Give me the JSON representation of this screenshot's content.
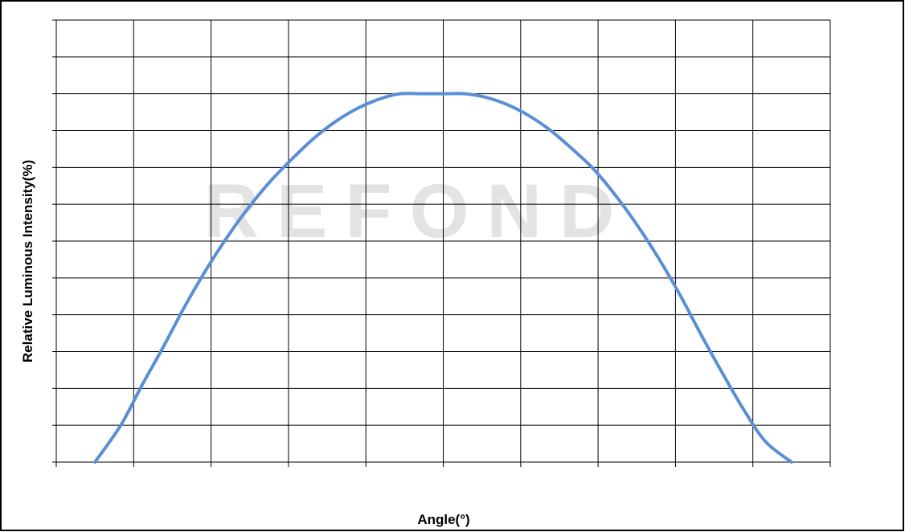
{
  "chart_data": {
    "type": "line",
    "title": "",
    "xlabel": "Angle(°)",
    "ylabel": "Relative Luminous Intensity(%)",
    "xlim": [
      -90,
      90
    ],
    "ylim": [
      0,
      100
    ],
    "grid": true,
    "x_divisions": 10,
    "y_divisions": 12,
    "series": [
      {
        "x": [
          -81,
          -75,
          -70,
          -65,
          -60,
          -55,
          -50,
          -45,
          -40,
          -35,
          -30,
          -25,
          -20,
          -15,
          -10,
          -5,
          0,
          5,
          10,
          15,
          20,
          25,
          30,
          35,
          40,
          45,
          50,
          55,
          60,
          65,
          70,
          75,
          81
        ],
        "y": [
          0,
          10,
          21,
          31.5,
          42.5,
          52.5,
          61.5,
          69.5,
          76.5,
          82.5,
          88,
          92.5,
          96,
          98.5,
          100,
          100,
          100,
          100,
          99,
          97,
          94,
          90,
          85,
          79.5,
          72.5,
          64.5,
          55.5,
          45.5,
          34.5,
          24,
          14,
          5.5,
          0
        ],
        "color": "#5b8fd5"
      }
    ],
    "watermark": "REFOND"
  }
}
